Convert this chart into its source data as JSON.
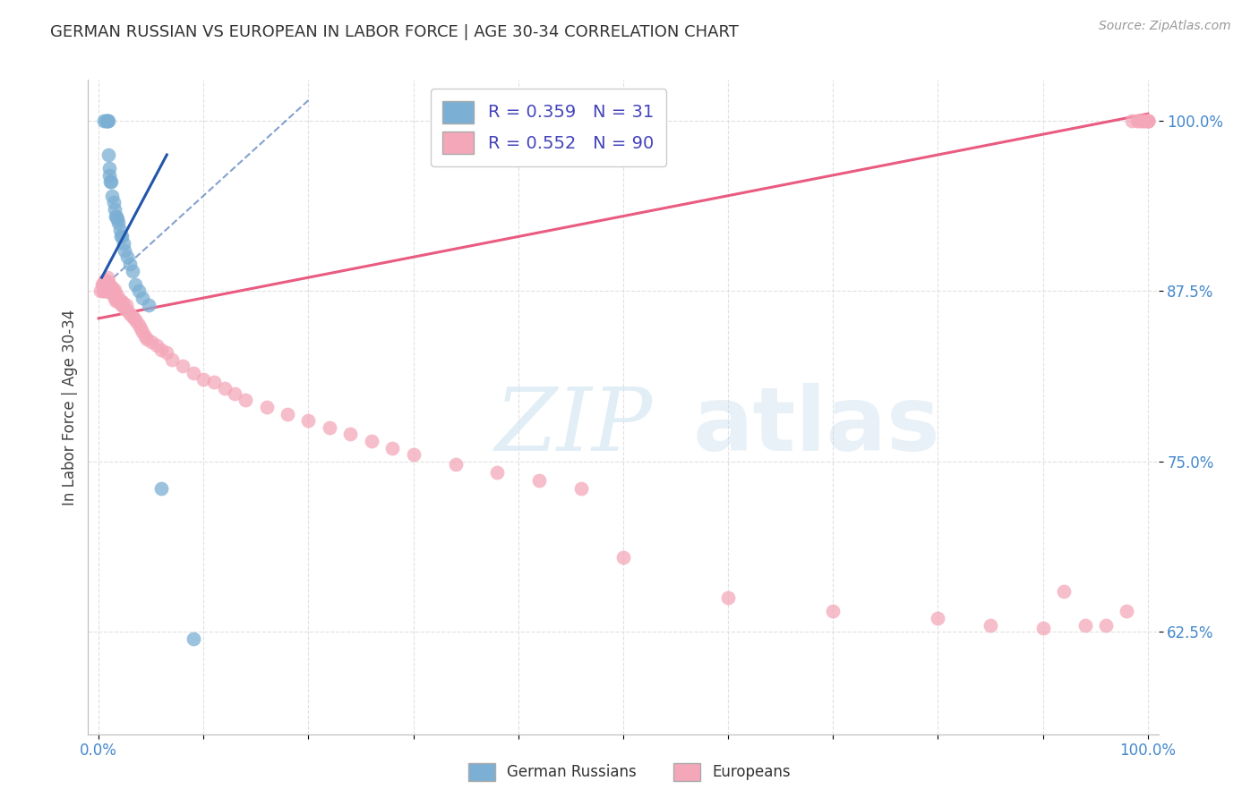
{
  "title": "GERMAN RUSSIAN VS EUROPEAN IN LABOR FORCE | AGE 30-34 CORRELATION CHART",
  "source": "Source: ZipAtlas.com",
  "ylabel": "In Labor Force | Age 30-34",
  "xmin": 0.0,
  "xmax": 1.0,
  "ymin": 0.55,
  "ymax": 1.03,
  "yticks": [
    0.625,
    0.75,
    0.875,
    1.0
  ],
  "ytick_labels": [
    "62.5%",
    "75.0%",
    "87.5%",
    "100.0%"
  ],
  "xtick_labels": [
    "0.0%",
    "",
    "",
    "",
    "",
    "",
    "",
    "",
    "",
    "",
    "100.0%"
  ],
  "blue_color": "#7BAFD4",
  "pink_color": "#F4A7B9",
  "blue_line_color": "#2255AA",
  "pink_line_color": "#E8527A",
  "blue_r": 0.359,
  "blue_n": 31,
  "pink_r": 0.552,
  "pink_n": 90,
  "background_color": "#FFFFFF",
  "grid_color": "#DDDDDD",
  "blue_scatter_x": [
    0.005,
    0.007,
    0.008,
    0.008,
    0.009,
    0.009,
    0.01,
    0.01,
    0.011,
    0.012,
    0.013,
    0.014,
    0.015,
    0.016,
    0.017,
    0.018,
    0.019,
    0.02,
    0.021,
    0.022,
    0.024,
    0.025,
    0.027,
    0.03,
    0.032,
    0.035,
    0.038,
    0.042,
    0.048,
    0.06,
    0.09
  ],
  "blue_scatter_y": [
    1.0,
    1.0,
    1.0,
    1.0,
    1.0,
    0.975,
    0.965,
    0.96,
    0.955,
    0.955,
    0.945,
    0.94,
    0.935,
    0.93,
    0.93,
    0.928,
    0.925,
    0.92,
    0.915,
    0.915,
    0.91,
    0.905,
    0.9,
    0.895,
    0.89,
    0.88,
    0.875,
    0.87,
    0.865,
    0.73,
    0.62
  ],
  "pink_scatter_x": [
    0.002,
    0.003,
    0.004,
    0.004,
    0.005,
    0.005,
    0.006,
    0.006,
    0.007,
    0.007,
    0.008,
    0.008,
    0.009,
    0.009,
    0.01,
    0.01,
    0.011,
    0.011,
    0.012,
    0.012,
    0.013,
    0.013,
    0.014,
    0.014,
    0.015,
    0.015,
    0.016,
    0.017,
    0.018,
    0.018,
    0.02,
    0.021,
    0.022,
    0.023,
    0.025,
    0.026,
    0.028,
    0.03,
    0.032,
    0.034,
    0.036,
    0.038,
    0.04,
    0.042,
    0.044,
    0.046,
    0.05,
    0.055,
    0.06,
    0.065,
    0.07,
    0.08,
    0.09,
    0.1,
    0.11,
    0.12,
    0.13,
    0.14,
    0.16,
    0.18,
    0.2,
    0.22,
    0.24,
    0.26,
    0.28,
    0.3,
    0.34,
    0.38,
    0.42,
    0.46,
    0.5,
    0.6,
    0.7,
    0.8,
    0.85,
    0.9,
    0.92,
    0.94,
    0.96,
    0.98,
    0.985,
    0.99,
    0.992,
    0.994,
    0.996,
    0.998,
    1.0,
    1.0,
    1.0,
    1.0
  ],
  "pink_scatter_y": [
    0.875,
    0.88,
    0.875,
    0.88,
    0.875,
    0.882,
    0.876,
    0.883,
    0.875,
    0.88,
    0.878,
    0.885,
    0.875,
    0.882,
    0.876,
    0.88,
    0.874,
    0.878,
    0.875,
    0.876,
    0.874,
    0.878,
    0.875,
    0.872,
    0.87,
    0.876,
    0.868,
    0.87,
    0.868,
    0.872,
    0.866,
    0.868,
    0.865,
    0.867,
    0.862,
    0.865,
    0.86,
    0.858,
    0.856,
    0.855,
    0.853,
    0.85,
    0.848,
    0.845,
    0.842,
    0.84,
    0.838,
    0.835,
    0.832,
    0.83,
    0.825,
    0.82,
    0.815,
    0.81,
    0.808,
    0.804,
    0.8,
    0.795,
    0.79,
    0.785,
    0.78,
    0.775,
    0.77,
    0.765,
    0.76,
    0.755,
    0.748,
    0.742,
    0.736,
    0.73,
    0.68,
    0.65,
    0.64,
    0.635,
    0.63,
    0.628,
    0.655,
    0.63,
    0.63,
    0.64,
    1.0,
    1.0,
    1.0,
    1.0,
    1.0,
    1.0,
    1.0,
    1.0,
    1.0,
    1.0
  ]
}
